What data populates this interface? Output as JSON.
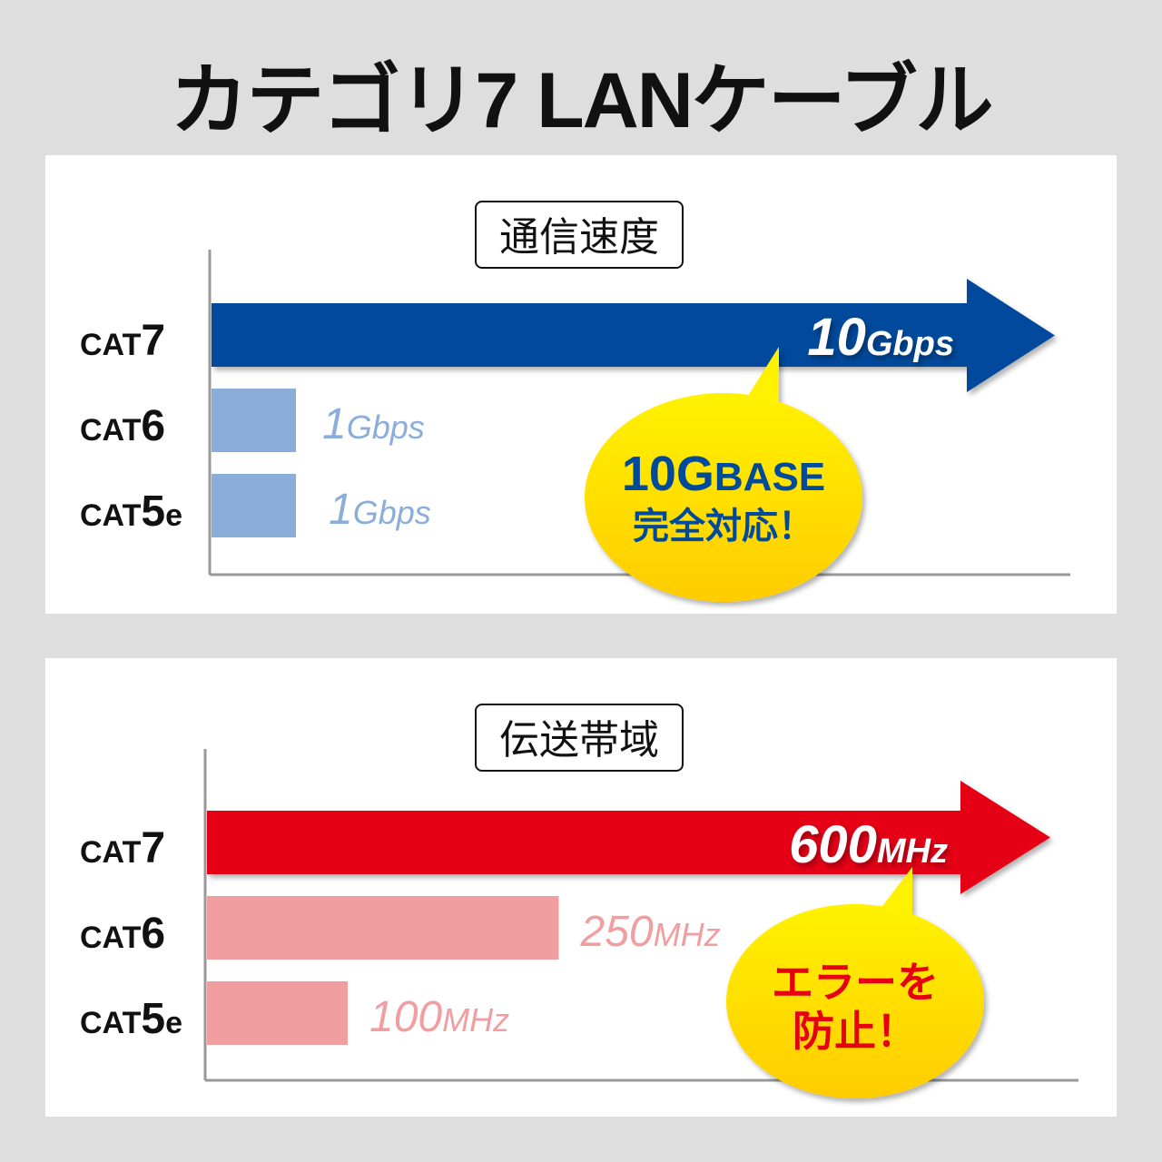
{
  "title": "カテゴリ7 LANケーブル",
  "colors": {
    "background": "#dedede",
    "panel": "#ffffff",
    "cat7_speed": "#004a9c",
    "other_speed": "#8badda",
    "cat7_band": "#e50012",
    "other_band": "#f19ea1",
    "bubble_top": "#fff200",
    "bubble_bottom": "#ffcc00"
  },
  "chart_data": [
    {
      "type": "bar",
      "orientation": "horizontal",
      "title": "通信速度",
      "categories": [
        {
          "prefix": "CAT",
          "suffix": "7"
        },
        {
          "prefix": "CAT",
          "suffix": "6"
        },
        {
          "prefix": "CAT",
          "suffix": "5e"
        }
      ],
      "values": [
        10,
        1,
        1
      ],
      "labels": [
        {
          "number": "10",
          "unit": "Gbps"
        },
        {
          "number": "1",
          "unit": "Gbps"
        },
        {
          "number": "1",
          "unit": "Gbps"
        }
      ],
      "unit": "Gbps",
      "xlim": [
        0,
        10
      ],
      "callout": {
        "line1_big": "10G",
        "line1_small": "BASE",
        "line2": "完全対応！"
      }
    },
    {
      "type": "bar",
      "orientation": "horizontal",
      "title": "伝送帯域",
      "categories": [
        {
          "prefix": "CAT",
          "suffix": "7"
        },
        {
          "prefix": "CAT",
          "suffix": "6"
        },
        {
          "prefix": "CAT",
          "suffix": "5e"
        }
      ],
      "values": [
        600,
        250,
        100
      ],
      "labels": [
        {
          "number": "600",
          "unit": "MHz"
        },
        {
          "number": "250",
          "unit": "MHz"
        },
        {
          "number": "100",
          "unit": "MHz"
        }
      ],
      "unit": "MHz",
      "xlim": [
        0,
        600
      ],
      "callout": {
        "line1": "エラーを",
        "line2": "防止！"
      }
    }
  ]
}
